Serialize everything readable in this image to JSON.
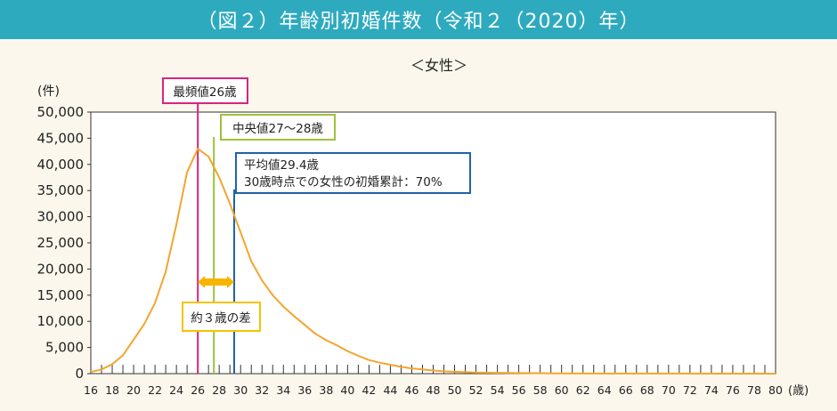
{
  "banner": {
    "title": "（図２）年齢別初婚件数（令和２（2020）年）"
  },
  "colors": {
    "banner_bg": "#2eaabf",
    "page_bg": "#fbf7ec",
    "curve": "#f3a52e",
    "mode_line": "#d6257e",
    "median_line": "#9cc23a",
    "mean_line": "#1f62aa",
    "difference_box": "#f5c400",
    "arrow": "#f7b500"
  },
  "chart_data": {
    "type": "line",
    "title": "＜女性＞",
    "ylabel": "(件)",
    "xlabel": "(歳)",
    "xlim": [
      16,
      80
    ],
    "ylim": [
      0,
      50000
    ],
    "yticks": [
      "0",
      "5,000",
      "10,000",
      "15,000",
      "20,000",
      "25,000",
      "30,000",
      "35,000",
      "40,000",
      "45,000",
      "50,000"
    ],
    "xticks": [
      "16",
      "18",
      "20",
      "22",
      "24",
      "26",
      "28",
      "30",
      "32",
      "34",
      "36",
      "38",
      "40",
      "42",
      "44",
      "46",
      "48",
      "50",
      "52",
      "54",
      "56",
      "58",
      "60",
      "62",
      "64",
      "66",
      "68",
      "70",
      "72",
      "74",
      "76",
      "78",
      "80"
    ],
    "x": [
      16,
      17,
      18,
      19,
      20,
      21,
      22,
      23,
      24,
      25,
      26,
      27,
      28,
      29,
      30,
      31,
      32,
      33,
      34,
      35,
      36,
      37,
      38,
      39,
      40,
      41,
      42,
      43,
      44,
      45,
      46,
      47,
      48,
      49,
      50,
      52,
      55,
      60,
      65,
      70,
      75,
      80
    ],
    "values": [
      300,
      800,
      1800,
      3500,
      6500,
      9500,
      13500,
      19500,
      28500,
      38500,
      43000,
      41500,
      37500,
      32500,
      27000,
      21500,
      17800,
      15000,
      12800,
      11000,
      9300,
      7600,
      6400,
      5400,
      4300,
      3400,
      2600,
      2100,
      1700,
      1300,
      1000,
      800,
      600,
      450,
      350,
      200,
      120,
      50,
      20,
      10,
      5,
      0
    ],
    "annotations": [
      {
        "id": "mode",
        "label": "最頻値26歳",
        "x": 26
      },
      {
        "id": "median",
        "label": "中央値27～28歳",
        "x": 27.5
      },
      {
        "id": "mean",
        "label_line1": "平均値29.4歳",
        "label_line2": "30歳時点での女性の初婚累計：70%",
        "x": 29.4
      },
      {
        "id": "difference",
        "label": "約３歳の差",
        "from": 26,
        "to": 29.4
      }
    ]
  }
}
